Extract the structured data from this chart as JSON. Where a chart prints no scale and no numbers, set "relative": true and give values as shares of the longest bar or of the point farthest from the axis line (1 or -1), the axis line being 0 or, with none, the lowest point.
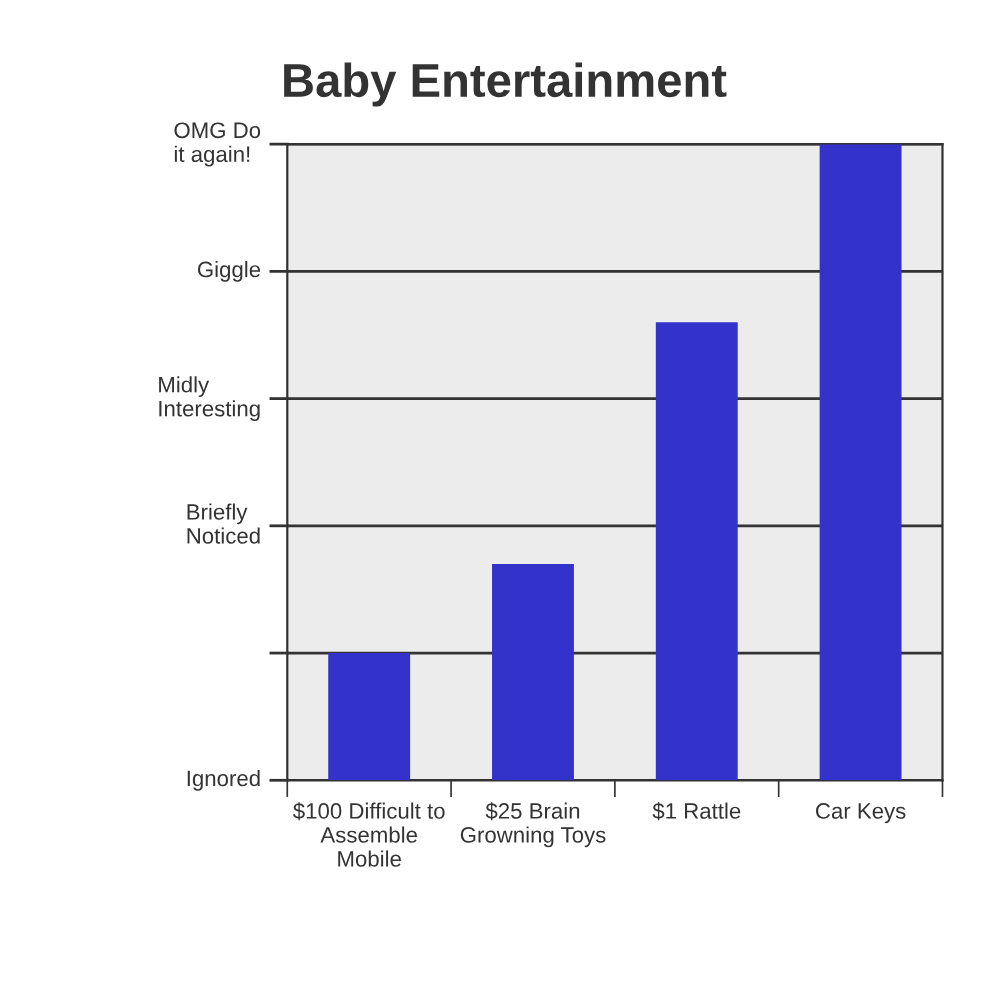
{
  "chart_data": {
    "type": "bar",
    "title": "Baby Entertainment",
    "categories": [
      "$100 Difficult to\nAssemble\nMobile",
      "$25 Brain\nGrowning Toys",
      "$1 Rattle",
      "Car Keys"
    ],
    "values": [
      0.2,
      0.34,
      0.72,
      1
    ],
    "color": "#3333cc",
    "relative": true,
    "ref_lines": [
      {
        "axis": "y",
        "value": 0,
        "label": "Ignored",
        "color": "#333333"
      },
      {
        "axis": "y",
        "value": 0.2,
        "label": null,
        "color": "#333333"
      },
      {
        "axis": "y",
        "value": 0.4,
        "label": "Briefly\nNoticed",
        "color": "#333333"
      },
      {
        "axis": "y",
        "value": 0.6,
        "label": "Midly\nInteresting",
        "color": "#333333"
      },
      {
        "axis": "y",
        "value": 0.8,
        "label": "Giggle",
        "color": "#333333"
      },
      {
        "axis": "y",
        "value": 1,
        "label": "OMG Do\nit again!",
        "color": "#333333"
      }
    ]
  }
}
